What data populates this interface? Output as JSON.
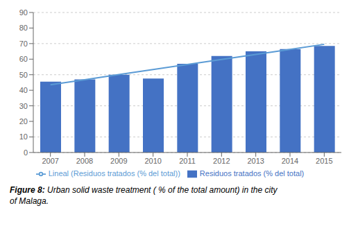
{
  "chart_data": {
    "type": "bar",
    "categories": [
      "2007",
      "2008",
      "2009",
      "2010",
      "2011",
      "2012",
      "2013",
      "2014",
      "2015"
    ],
    "series": [
      {
        "name": "Residuos tratados (% del total)",
        "type": "bar",
        "color": "#4472C4",
        "values": [
          45.5,
          47.0,
          50.0,
          47.5,
          57.0,
          62.0,
          65.0,
          66.5,
          68.5
        ]
      },
      {
        "name": "Lineal (Residuos tratados (% del total))",
        "type": "line",
        "color": "#5B9BD5",
        "values": [
          43.5556,
          46.8056,
          50.0556,
          53.3056,
          56.5556,
          59.8056,
          63.0556,
          66.3056,
          69.5556
        ]
      }
    ],
    "ylim": [
      0,
      90
    ],
    "yticks": [
      0,
      10,
      20,
      30,
      40,
      50,
      60,
      70,
      80,
      90
    ],
    "grid": true,
    "legend": "bottom",
    "annotations": [
      "Figure 8:",
      "Urban solid waste treatment ( % of the total amount) in the city",
      "of Malaga."
    ]
  }
}
